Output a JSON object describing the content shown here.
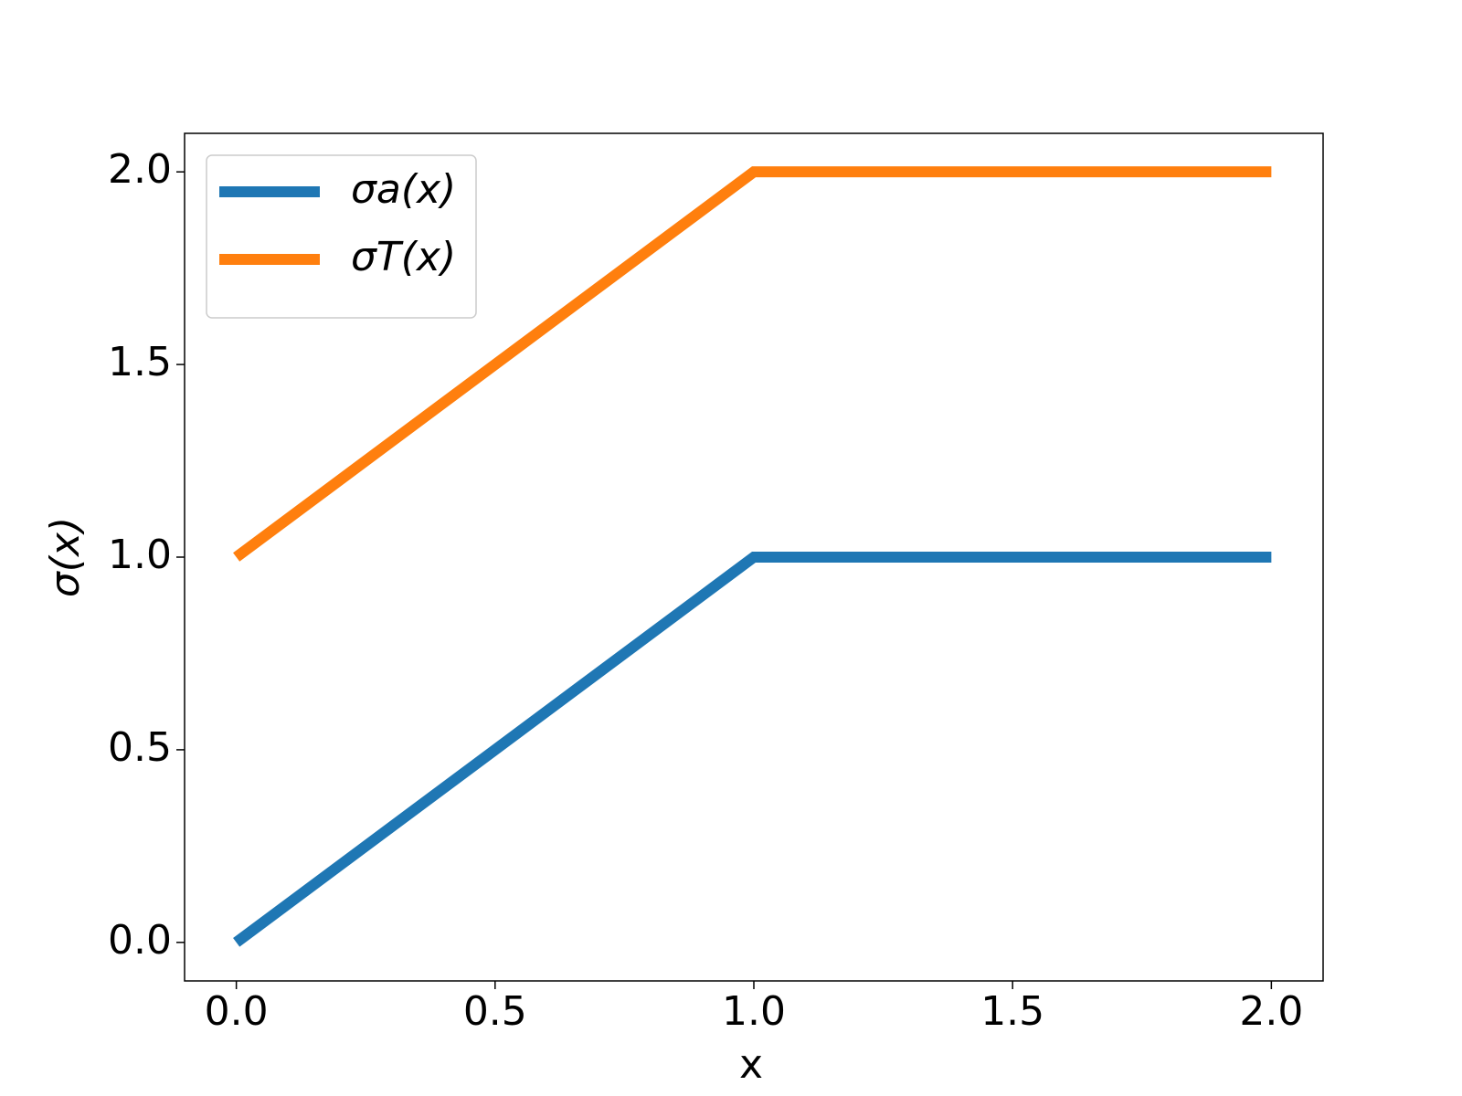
{
  "chart_data": {
    "type": "line",
    "x_label": "x",
    "y_label": "σ(x)",
    "x": [
      0,
      1,
      2
    ],
    "series": [
      {
        "name": "σa(x)",
        "color": "#1f77b4",
        "values": [
          0,
          1,
          1
        ]
      },
      {
        "name": "σT(x)",
        "color": "#ff7f0e",
        "values": [
          1,
          2,
          2
        ]
      }
    ],
    "xlim": [
      -0.1,
      2.1
    ],
    "ylim": [
      -0.1,
      2.1
    ],
    "xticks": [
      {
        "value": 0,
        "label": "0.0"
      },
      0.5,
      {
        "value": 1,
        "label": "1.0"
      },
      1.5,
      {
        "value": 2,
        "label": "2.0"
      }
    ],
    "yticks": [
      {
        "value": 0,
        "label": "0.0"
      },
      0.5,
      {
        "value": 1,
        "label": "1.0"
      },
      1.5,
      {
        "value": 2,
        "label": "2.0"
      }
    ],
    "legend": "upper left",
    "grid": false
  }
}
